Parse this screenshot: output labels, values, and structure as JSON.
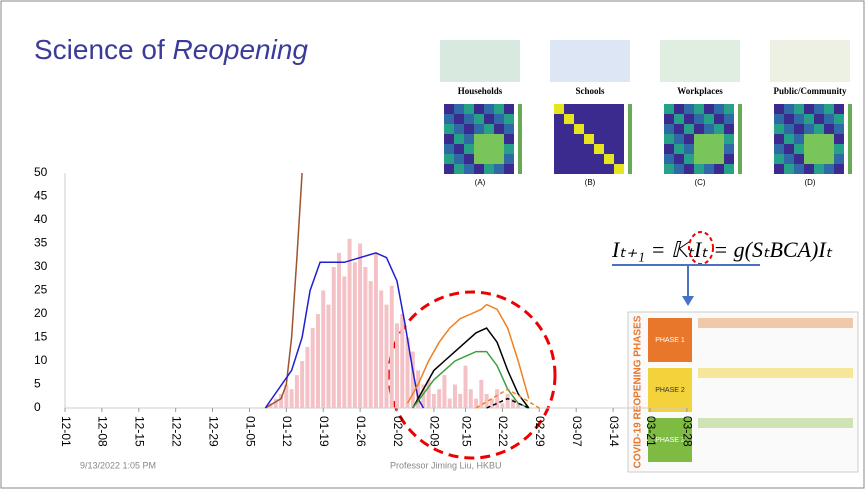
{
  "slide": {
    "title": "Science of ",
    "title_italic": "Reopening",
    "footer_date": "9/13/2022 1:05 PM",
    "footer_author": "Professor Jiming Liu, HKBU",
    "formula": "Iₜ₊₁ = 𝕂ₜIₜ = g(SₜBCA)Iₜ",
    "panels": [
      "Households",
      "Schools",
      "Workplaces",
      "Public/Community"
    ],
    "panel_tags": [
      "(A)",
      "(B)",
      "(C)",
      "(D)"
    ],
    "doc_title": "COVID-19 REOPENING PHASES",
    "phases": [
      "PHASE 1",
      "PHASE 2",
      "PHASE 3"
    ]
  },
  "chart_data": {
    "type": "line",
    "xlim": [
      0,
      118
    ],
    "ylim": [
      0,
      50
    ],
    "yticks": [
      0,
      5,
      10,
      15,
      20,
      25,
      30,
      35,
      40,
      45,
      50
    ],
    "xticks": [
      {
        "value": 0,
        "label": "12-01"
      },
      {
        "value": 7,
        "label": "12-08"
      },
      {
        "value": 14,
        "label": "12-15"
      },
      {
        "value": 21,
        "label": "12-22"
      },
      {
        "value": 28,
        "label": "12-29"
      },
      {
        "value": 35,
        "label": "01-05"
      },
      {
        "value": 42,
        "label": "01-12"
      },
      {
        "value": 49,
        "label": "01-19"
      },
      {
        "value": 56,
        "label": "01-26"
      },
      {
        "value": 63,
        "label": "02-02"
      },
      {
        "value": 70,
        "label": "02-09"
      },
      {
        "value": 76,
        "label": "02-15"
      },
      {
        "value": 83,
        "label": "02-22"
      },
      {
        "value": 90,
        "label": "02-29"
      },
      {
        "value": 97,
        "label": "03-07"
      },
      {
        "value": 104,
        "label": "03-14"
      },
      {
        "value": 111,
        "label": "03-21"
      },
      {
        "value": 118,
        "label": "03-28"
      }
    ],
    "series": [
      {
        "type": "bar",
        "color": "#f4c2c6",
        "x": [
          39,
          40,
          41,
          42,
          43,
          44,
          45,
          46,
          47,
          48,
          49,
          50,
          51,
          52,
          53,
          54,
          55,
          56,
          57,
          58,
          59,
          60,
          61,
          62,
          63,
          64,
          65,
          66,
          67,
          68,
          69,
          70,
          71,
          72,
          73,
          74,
          75,
          76,
          77,
          78,
          79,
          80,
          81,
          82,
          83,
          84,
          85,
          86
        ],
        "values": [
          1,
          2,
          3,
          5,
          4,
          7,
          10,
          13,
          17,
          20,
          25,
          22,
          30,
          33,
          28,
          36,
          31,
          35,
          30,
          27,
          33,
          25,
          22,
          26,
          18,
          20,
          15,
          12,
          8,
          5,
          6,
          3,
          4,
          7,
          2,
          5,
          3,
          9,
          4,
          2,
          6,
          3,
          2,
          4,
          1,
          3,
          2,
          1
        ]
      },
      {
        "type": "line",
        "color": "#a0522d",
        "x": [
          38,
          41,
          42,
          43,
          44,
          45
        ],
        "values": [
          0,
          2,
          5,
          15,
          32,
          50
        ]
      },
      {
        "type": "line",
        "color": "#1f1fd0",
        "x": [
          38,
          43,
          45,
          46.5,
          48.4,
          53,
          59,
          61,
          63,
          64.5,
          66,
          67,
          68
        ],
        "values": [
          0,
          8,
          15,
          25,
          31,
          31,
          33,
          32,
          27,
          18,
          8,
          2,
          0
        ]
      },
      {
        "type": "line",
        "color": "#f08020",
        "x": [
          65,
          67,
          69,
          71,
          73,
          75,
          77,
          79,
          80,
          82,
          84,
          86,
          88
        ],
        "values": [
          1,
          5,
          10,
          14,
          17,
          19,
          20,
          21,
          22,
          21,
          17,
          10,
          2
        ]
      },
      {
        "type": "line",
        "color": "#000000",
        "x": [
          66,
          68,
          70,
          72,
          74,
          76,
          78,
          80,
          82,
          84,
          86,
          88
        ],
        "values": [
          0,
          4,
          8,
          10,
          12,
          14,
          16,
          17,
          14,
          8,
          3,
          0
        ]
      },
      {
        "type": "line",
        "color": "#3aa040",
        "x": [
          66,
          68,
          70,
          72,
          74,
          76,
          78,
          80,
          82,
          84,
          86,
          88
        ],
        "values": [
          0,
          3,
          6,
          8,
          10,
          11,
          12,
          12,
          9,
          4,
          1,
          0
        ]
      },
      {
        "type": "line",
        "color": "#f08020",
        "dash": true,
        "x": [
          78,
          81,
          84,
          87,
          90
        ],
        "values": [
          0,
          2,
          4,
          2,
          0
        ]
      },
      {
        "type": "line",
        "color": "#000000",
        "dash": true,
        "x": [
          80,
          84,
          88
        ],
        "values": [
          0,
          2,
          0
        ]
      }
    ]
  }
}
